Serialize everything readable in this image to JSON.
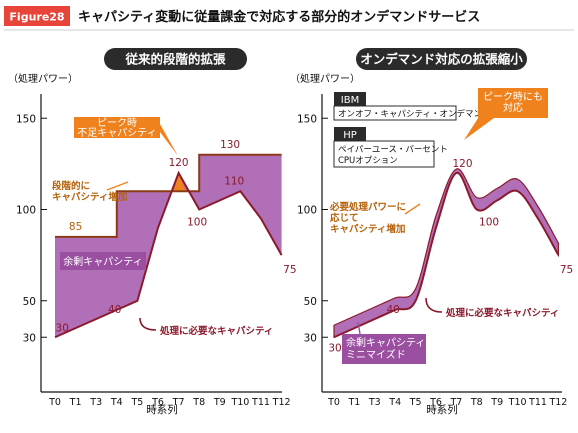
{
  "figure": {
    "badge": "Figure28",
    "title": "キャパシティ変動に従量課金で対応する部分的オンデマンドサービス"
  },
  "colors": {
    "demand_line": "#8b1a2c",
    "fill": "#b06fb6",
    "badge": "#e8453a",
    "orange": "#f0821e",
    "axis": "#111111",
    "header": "#2b2b2b"
  },
  "chart_data": [
    {
      "type": "area",
      "title": "従来的段階的拡張",
      "ylabel": "（処理パワー）",
      "xlabel": "時系列",
      "ylim": [
        0,
        160
      ],
      "yticks": [
        30,
        50,
        100,
        150
      ],
      "categories": [
        "T0",
        "T1",
        "T3",
        "T4",
        "T5",
        "T6",
        "T7",
        "T8",
        "T9",
        "T10",
        "T11",
        "T12"
      ],
      "series": [
        {
          "role": "capacity",
          "values": [
            85,
            85,
            85,
            110,
            110,
            110,
            110,
            130,
            130,
            130,
            130,
            130
          ]
        },
        {
          "role": "demand",
          "values": [
            30,
            35,
            40,
            45,
            50,
            90,
            120,
            100,
            105,
            110,
            95,
            75
          ]
        }
      ],
      "data_labels": [
        {
          "text": "85",
          "x": 1,
          "y": 85,
          "color": "orange"
        },
        {
          "text": "130",
          "x": 8.5,
          "y": 130,
          "color": "dark"
        },
        {
          "text": "120",
          "x": 6,
          "y": 120,
          "color": "dark"
        },
        {
          "text": "100",
          "x": 6.9,
          "y": 100,
          "color": "dark"
        },
        {
          "text": "110",
          "x": 8.7,
          "y": 110,
          "color": "dark"
        },
        {
          "text": "75",
          "x": 11.4,
          "y": 75,
          "color": "dark"
        },
        {
          "text": "40",
          "x": 2.9,
          "y": 40,
          "color": "dark"
        },
        {
          "text": "30",
          "x": 0.35,
          "y": 30,
          "color": "dark"
        }
      ],
      "annotations": {
        "shortage": [
          "ピーク時",
          "不足キャパシティ"
        ],
        "stepup": [
          "段階的に",
          "キャパシティ増加"
        ],
        "surplus": "余剰キャパシティ",
        "demand": "処理に必要なキャパシティ"
      }
    },
    {
      "type": "area",
      "title": "オンデマンド対応の拡張縮小",
      "ylabel": "（処理パワー）",
      "xlabel": "時系列",
      "ylim": [
        0,
        160
      ],
      "yticks": [
        30,
        50,
        100,
        150
      ],
      "categories": [
        "T0",
        "T1",
        "T3",
        "T4",
        "T5",
        "T6",
        "T7",
        "T8",
        "T9",
        "T10",
        "T11",
        "T12"
      ],
      "series": [
        {
          "role": "demand",
          "values": [
            30,
            35,
            40,
            45,
            50,
            90,
            120,
            100,
            105,
            110,
            95,
            75
          ]
        }
      ],
      "data_labels": [
        {
          "text": "120",
          "x": 6.3,
          "y": 120,
          "color": "dark"
        },
        {
          "text": "100",
          "x": 7.6,
          "y": 100,
          "color": "dark"
        },
        {
          "text": "75",
          "x": 11.4,
          "y": 75,
          "color": "dark"
        },
        {
          "text": "40",
          "x": 2.9,
          "y": 40,
          "color": "dark"
        },
        {
          "text": "30",
          "x": 0.05,
          "y": 30,
          "color": "dark"
        }
      ],
      "annotations": {
        "peak": [
          "ピーク時にも",
          "対応"
        ],
        "need": [
          "必要処理パワーに",
          "応じて",
          "キャパシティ増加"
        ],
        "demand": "処理に必要なキャパシティ",
        "minimize": [
          "余剰キャパシティ",
          "ミニマイズド"
        ]
      },
      "vendors": [
        {
          "name": "IBM",
          "desc": [
            "オンオフ・キャパシティ・オンデマンド"
          ]
        },
        {
          "name": "HP",
          "desc": [
            "ペイパーユース・パーセント",
            "CPUオプション"
          ]
        }
      ]
    }
  ]
}
